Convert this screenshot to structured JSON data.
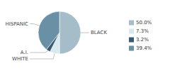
{
  "chart_data": {
    "type": "pie",
    "categories": [
      "BLACK",
      "WHITE",
      "A.I.",
      "HISPANIC"
    ],
    "values": [
      50.0,
      7.3,
      3.2,
      39.4
    ],
    "value_labels": [
      "50.0%",
      "7.3%",
      "3.2%",
      "39.4%"
    ],
    "colors": [
      "#a4bdc9",
      "#d8e8ef",
      "#3a5a72",
      "#6990a5"
    ],
    "legend": "right"
  }
}
